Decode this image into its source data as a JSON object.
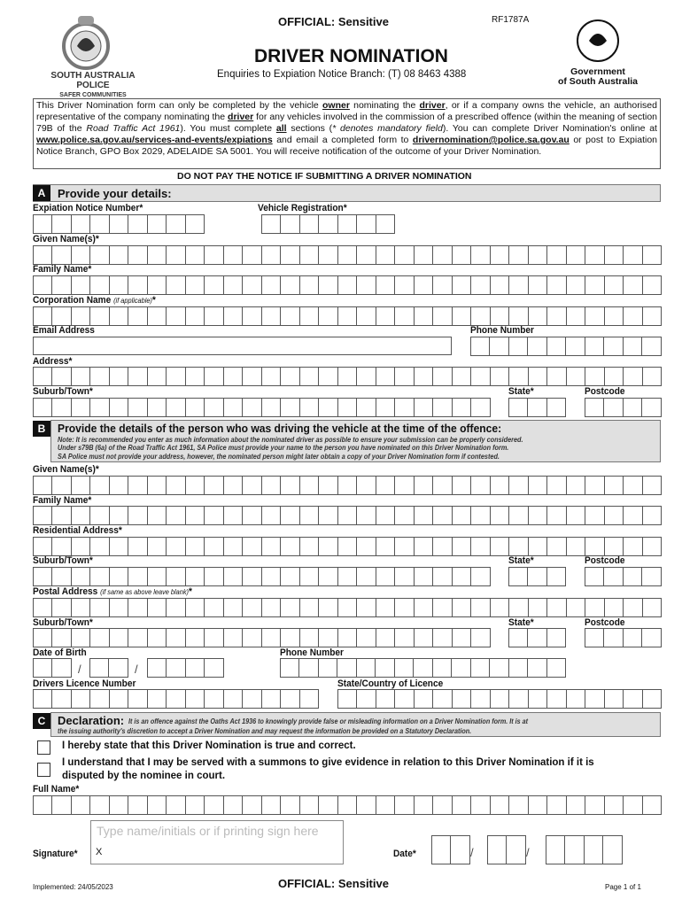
{
  "header": {
    "classification": "OFFICIAL: Sensitive",
    "form_code": "RF1787A",
    "title": "DRIVER NOMINATION",
    "enquiries": "Enquiries to Expiation Notice Branch: (T) 08 8463 4388",
    "sapol_logo_line1": "SOUTH AUSTRALIA POLICE",
    "sapol_logo_line2": "SAFER COMMUNITIES",
    "gov_logo_line1": "Government",
    "gov_logo_line2": "of South Australia"
  },
  "intro": {
    "p1": "This Driver Nomination form can only be completed by the vehicle ",
    "owner": "owner",
    "p2": " nominating the ",
    "driver": "driver",
    "p3": ", or if a company owns the vehicle, an authorised representative of the company nominating the ",
    "p4": " for any vehicles involved in the commission of a prescribed offence (within the meaning of section 79B of the ",
    "act": "Road Traffic Act 1961",
    "p5": "). You must complete ",
    "all": "all",
    "p6": " sections (",
    "mandatory": "* denotes mandatory field",
    "p7": "). You can complete Driver Nomination's online at ",
    "url": "www.police.sa.gov.au/services-and-events/expiations",
    "p8": " and email a completed form to ",
    "email": "drivernomination@police.sa.gov.au",
    "p9": " or post to Expiation Notice Branch, GPO Box 2029, ADELAIDE SA 5001. You will receive notification of the outcome of your Driver Nomination.",
    "warning": "DO NOT PAY THE NOTICE IF SUBMITTING A DRIVER NOMINATION"
  },
  "section_a": {
    "letter": "A",
    "title": "Provide your details:",
    "expiation_notice_number": "Expiation Notice Number*",
    "vehicle_registration": "Vehicle Registration*",
    "given_names": "Given Name(s)*",
    "family_name": "Family Name*",
    "corporation_name": "Corporation Name",
    "corporation_hint": "(if applicable)",
    "star": "*",
    "email_address": "Email Address",
    "phone_number": "Phone Number",
    "address": "Address*",
    "suburb": "Suburb/Town*",
    "state": "State*",
    "postcode": "Postcode"
  },
  "section_b": {
    "letter": "B",
    "title": "Provide the details of the person who was driving the vehicle at the time of the offence:",
    "note1": "Note: It is recommended you enter as much information about the nominated driver as possible to ensure your submission can be properly considered.",
    "note2": "Under s79B (6a) of the Road Traffic Act 1961, SA Police must provide your name to the person you have nominated on this Driver Nomination form.",
    "note3": "SA Police must not provide your address, however, the nominated person might later obtain a copy of your Driver Nomination form if contested.",
    "given_names": "Given Name(s)*",
    "family_name": "Family Name*",
    "residential_address": "Residential Address*",
    "suburb": "Suburb/Town*",
    "state": "State*",
    "postcode": "Postcode",
    "postal_address": "Postal Address",
    "postal_hint": "(if same as above leave blank)",
    "star": "*",
    "suburb2": "Suburb/Town*",
    "state2": "State*",
    "postcode2": "Postcode",
    "date_of_birth": "Date of Birth",
    "phone_number": "Phone Number",
    "licence_number": "Drivers Licence Number",
    "licence_state": "State/Country of Licence",
    "date_sep": "/"
  },
  "section_c": {
    "letter": "C",
    "title": "Declaration:",
    "note1": "It is an offence against the Oaths Act 1936 to knowingly provide false or misleading information on a Driver Nomination form. It is at",
    "note2": "the issuing authority's discretion to accept a Driver Nomination and may request the information be provided on a Statutory Declaration.",
    "check1": "I hereby state that this Driver Nomination is true and correct.",
    "check2a": "I understand that I may be served with a summons to give evidence in relation to this Driver Nomination if it is",
    "check2b": "disputed by the nominee in court.",
    "full_name": "Full Name*",
    "signature_label": "Signature*",
    "signature_placeholder": "Type name/initials or if printing sign here",
    "signature_x": "X",
    "date_label": "Date*",
    "date_sep": "/"
  },
  "footer": {
    "implemented": "Implemented: 24/05/2023",
    "classification": "OFFICIAL: Sensitive",
    "page": "Page 1 of 1"
  }
}
